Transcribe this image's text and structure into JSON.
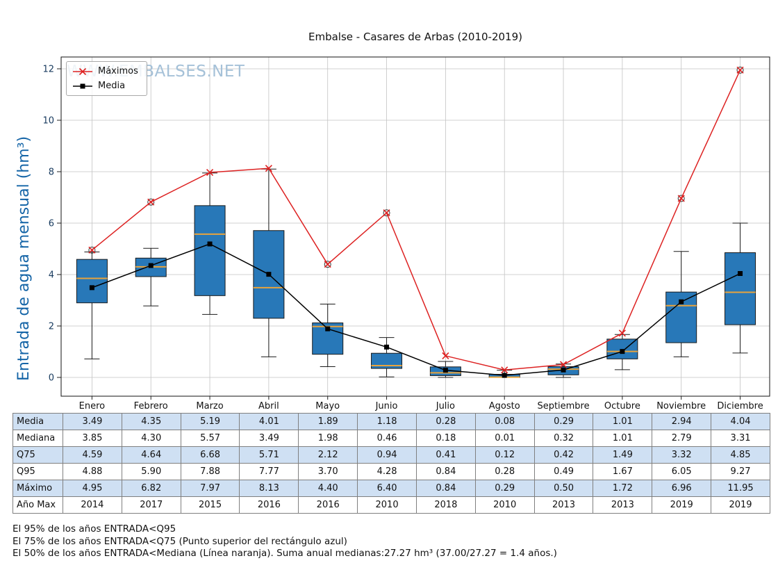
{
  "watermark": "WWW.EMBALSES.NET",
  "colors": {
    "box_fill": "#2878b8",
    "box_edge": "#1a1a1a",
    "median_line": "#e8a33c",
    "max_line": "#dd2222",
    "media_line": "#000000",
    "axis_label": "#1565a7",
    "tick_label": "#173a5e",
    "grid": "#c3c3c3",
    "table_alt_row": "#cfe0f3",
    "watermark": "#a5c1d8"
  },
  "chart_data": {
    "type": "boxplot",
    "title": "Embalse - Casares de Arbas (2010-2019)",
    "ylabel": "Entrada de agua mensual (hm³)",
    "xlabel": "",
    "ylim": [
      0,
      12
    ],
    "yticks": [
      0,
      2,
      4,
      6,
      8,
      10,
      12
    ],
    "grid": true,
    "legend_position": "upper-left",
    "categories": [
      "Enero",
      "Febrero",
      "Marzo",
      "Abril",
      "Mayo",
      "Junio",
      "Julio",
      "Agosto",
      "Septiembre",
      "Octubre",
      "Noviembre",
      "Diciembre"
    ],
    "series": [
      {
        "name": "Máximos",
        "marker": "x",
        "color": "#dd2222",
        "values": [
          4.95,
          6.82,
          7.97,
          8.13,
          4.4,
          6.4,
          0.84,
          0.29,
          0.5,
          1.72,
          6.96,
          11.95
        ]
      },
      {
        "name": "Media",
        "marker": "square",
        "color": "#000000",
        "values": [
          3.49,
          4.35,
          5.19,
          4.01,
          1.89,
          1.18,
          0.28,
          0.08,
          0.29,
          1.01,
          2.94,
          4.04
        ]
      }
    ],
    "boxplot": {
      "q25": [
        2.9,
        3.92,
        3.18,
        2.3,
        0.9,
        0.35,
        0.07,
        0.0,
        0.1,
        0.72,
        1.35,
        2.05
      ],
      "median": [
        3.85,
        4.3,
        5.57,
        3.49,
        1.98,
        0.46,
        0.18,
        0.01,
        0.32,
        1.01,
        2.79,
        3.31
      ],
      "q75": [
        4.59,
        4.64,
        6.68,
        5.71,
        2.12,
        0.94,
        0.41,
        0.12,
        0.42,
        1.49,
        3.32,
        4.85
      ],
      "whisker_low": [
        0.72,
        2.78,
        2.45,
        0.8,
        0.42,
        0.02,
        0.0,
        0.0,
        0.0,
        0.3,
        0.8,
        0.95
      ],
      "whisker_high": [
        4.88,
        5.02,
        7.95,
        8.1,
        2.85,
        1.55,
        0.62,
        0.28,
        0.52,
        1.67,
        4.9,
        6.0
      ],
      "outliers": [
        [
          4.95
        ],
        [
          6.82
        ],
        [],
        [],
        [
          4.4
        ],
        [
          6.4
        ],
        [],
        [],
        [],
        [],
        [
          6.96
        ],
        [
          11.95
        ]
      ]
    }
  },
  "table": {
    "row_labels": [
      "Media",
      "Mediana",
      "Q75",
      "Q95",
      "Máximo",
      "Año Max"
    ],
    "rows": [
      [
        "3.49",
        "4.35",
        "5.19",
        "4.01",
        "1.89",
        "1.18",
        "0.28",
        "0.08",
        "0.29",
        "1.01",
        "2.94",
        "4.04"
      ],
      [
        "3.85",
        "4.30",
        "5.57",
        "3.49",
        "1.98",
        "0.46",
        "0.18",
        "0.01",
        "0.32",
        "1.01",
        "2.79",
        "3.31"
      ],
      [
        "4.59",
        "4.64",
        "6.68",
        "5.71",
        "2.12",
        "0.94",
        "0.41",
        "0.12",
        "0.42",
        "1.49",
        "3.32",
        "4.85"
      ],
      [
        "4.88",
        "5.90",
        "7.88",
        "7.77",
        "3.70",
        "4.28",
        "0.84",
        "0.28",
        "0.49",
        "1.67",
        "6.05",
        "9.27"
      ],
      [
        "4.95",
        "6.82",
        "7.97",
        "8.13",
        "4.40",
        "6.40",
        "0.84",
        "0.29",
        "0.50",
        "1.72",
        "6.96",
        "11.95"
      ],
      [
        "2014",
        "2017",
        "2015",
        "2016",
        "2016",
        "2010",
        "2018",
        "2010",
        "2013",
        "2013",
        "2019",
        "2019"
      ]
    ]
  },
  "footnotes": [
    "El 95% de los años ENTRADA<Q95",
    "El 75% de los años ENTRADA<Q75 (Punto superior del rectángulo azul)",
    "El 50% de los años ENTRADA<Mediana (Línea naranja). Suma anual medianas:27.27 hm³ (37.00/27.27 = 1.4 años.)"
  ]
}
